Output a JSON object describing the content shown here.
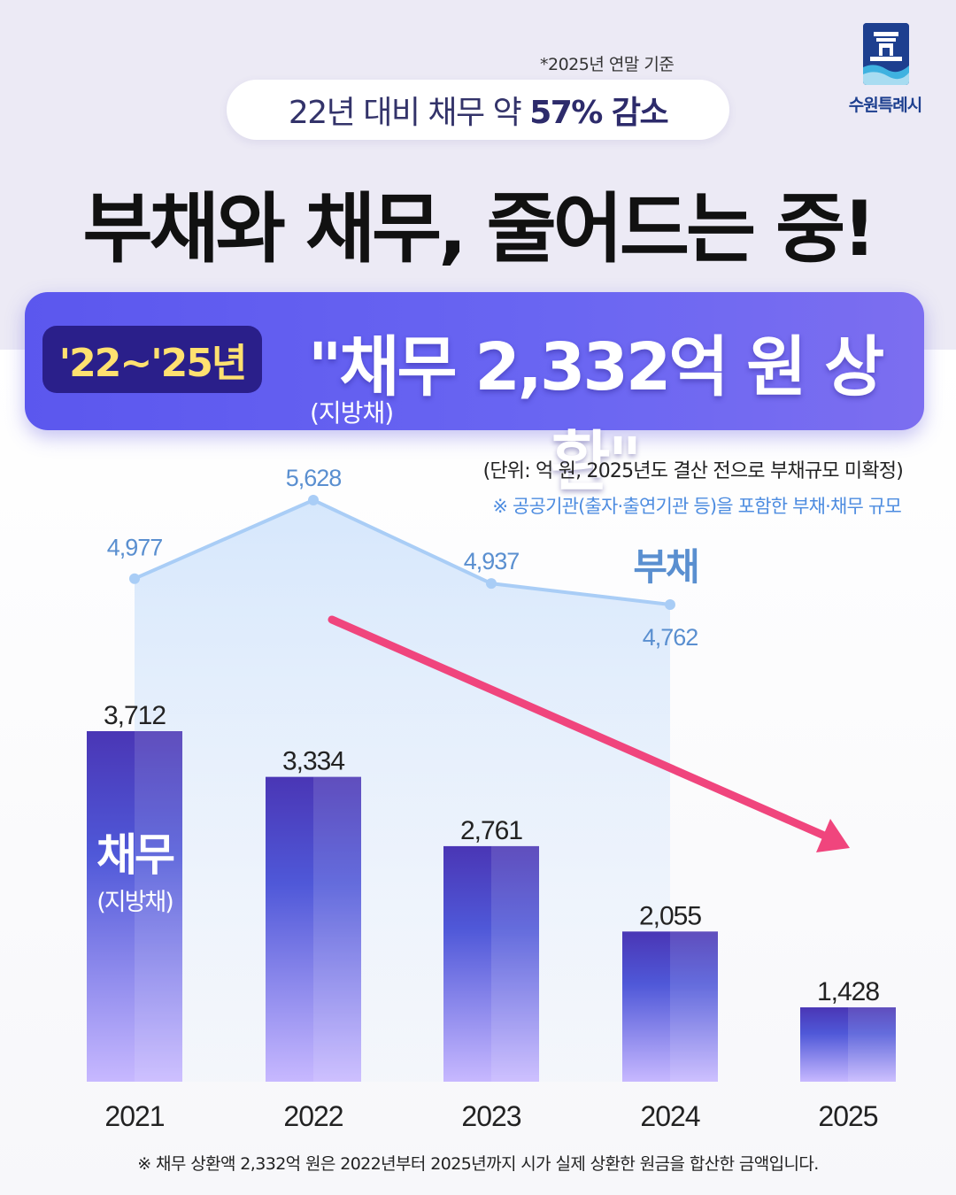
{
  "header": {
    "basis_note": "*2025년 연말 기준",
    "pill_prefix": "22년 대비 채무 약",
    "pill_emphasis": "57% 감소",
    "logo_text": "수원특례시",
    "headline": "부채와 채무, 줄어드는 중!"
  },
  "banner": {
    "period": "'22~'25년",
    "main": "\"채무 2,332억 원 상환\"",
    "sub": "(지방채)"
  },
  "notes": {
    "unit": "(단위: 억 원, 2025년도 결산 전으로 부채규모 미확정)",
    "scope": "※ 공공기관(출자·출연기관 등)을 포함한 부채·채무 규모",
    "footnote": "※ 채무 상환액 2,332억 원은 2022년부터 2025년까지 시가 실제 상환한 원금을 합산한 금액입니다."
  },
  "colors": {
    "debt_line": "#a9cdf6",
    "debt_label": "#5a8fd0",
    "bar_top": "#3a2fb8",
    "bar_bottom": "#c3b4ff",
    "arrow": "#f0457d"
  },
  "chart_data": {
    "type": "bar",
    "categories": [
      "2021",
      "2022",
      "2023",
      "2024",
      "2025"
    ],
    "series": [
      {
        "name": "채무",
        "name_sub": "(지방채)",
        "type": "bar",
        "values": [
          3712,
          3334,
          2761,
          2055,
          1428
        ],
        "labels": [
          "3,712",
          "3,334",
          "2,761",
          "2,055",
          "1,428"
        ]
      },
      {
        "name": "부채",
        "type": "line",
        "values": [
          4977,
          5628,
          4937,
          4762,
          null
        ],
        "labels": [
          "4,977",
          "5,628",
          "4,937",
          "4,762",
          ""
        ]
      }
    ],
    "ylim": [
      0,
      5700
    ],
    "trend_arrow": "down",
    "grid": false
  }
}
